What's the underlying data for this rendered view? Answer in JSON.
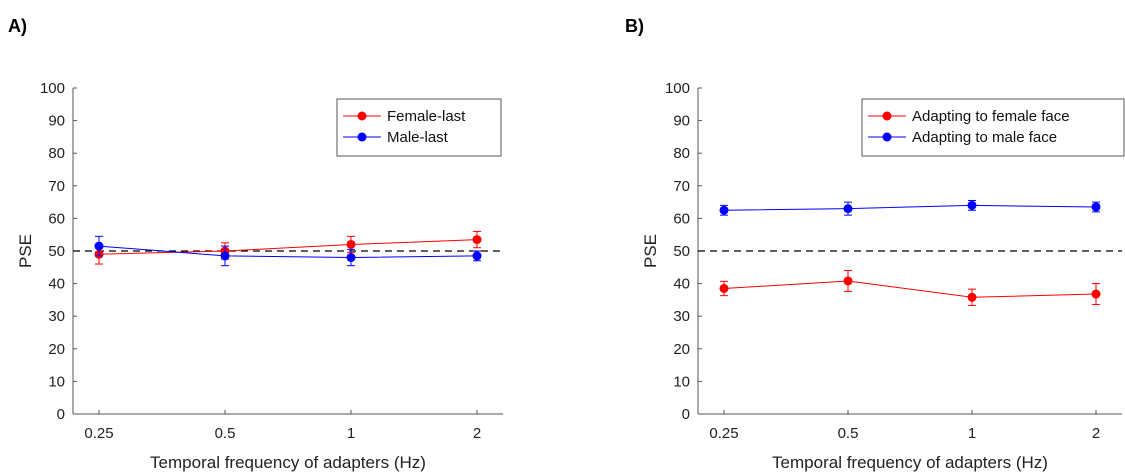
{
  "chart_data": [
    {
      "panel_label": "A)",
      "type": "line",
      "categories": [
        "0.25",
        "0.5",
        "1",
        "2"
      ],
      "xlabel": "Temporal frequency of adapters (Hz)",
      "ylabel": "PSE",
      "ylim": [
        0,
        100
      ],
      "yticks": [
        0,
        10,
        20,
        30,
        40,
        50,
        60,
        70,
        80,
        90,
        100
      ],
      "reference_line": 50,
      "legend": "top-right",
      "series": [
        {
          "name": "Female-last",
          "color": "#ff0000",
          "values": [
            49,
            50,
            52,
            53.5
          ],
          "errors": [
            3,
            2.5,
            2.5,
            2.5
          ]
        },
        {
          "name": "Male-last",
          "color": "#0000ff",
          "values": [
            51.5,
            48.5,
            48,
            48.5
          ],
          "errors": [
            3,
            3,
            2.5,
            1.5
          ]
        }
      ]
    },
    {
      "panel_label": "B)",
      "type": "line",
      "categories": [
        "0.25",
        "0.5",
        "1",
        "2"
      ],
      "xlabel": "Temporal frequency of adapters (Hz)",
      "ylabel": "PSE",
      "ylim": [
        0,
        100
      ],
      "yticks": [
        0,
        10,
        20,
        30,
        40,
        50,
        60,
        70,
        80,
        90,
        100
      ],
      "reference_line": 50,
      "legend": "top-right",
      "series": [
        {
          "name": "Adapting to female face",
          "color": "#ff0000",
          "values": [
            38.5,
            40.8,
            35.8,
            36.8
          ],
          "errors": [
            2.2,
            3.2,
            2.5,
            3.2
          ]
        },
        {
          "name": "Adapting to male face",
          "color": "#0000ff",
          "values": [
            62.5,
            63,
            64,
            63.5
          ],
          "errors": [
            1.5,
            2,
            1.5,
            1.5
          ]
        }
      ]
    }
  ]
}
